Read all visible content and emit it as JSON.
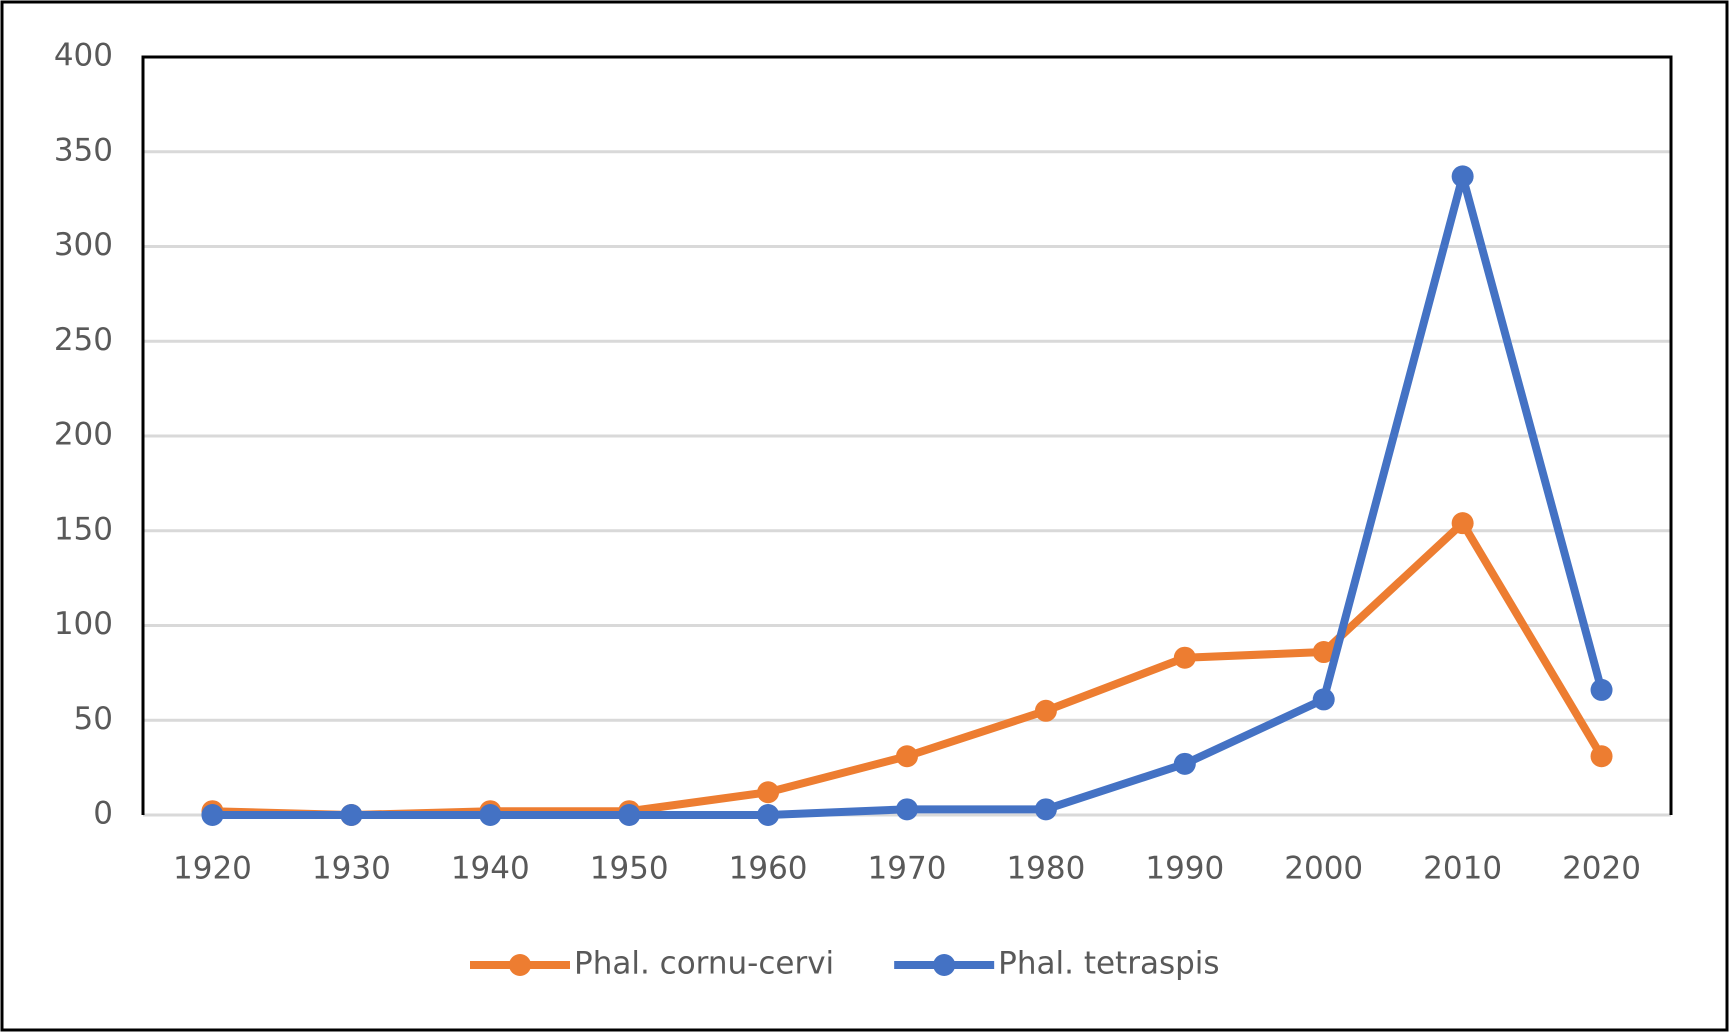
{
  "chart_data": {
    "type": "line",
    "categories": [
      "1920",
      "1930",
      "1940",
      "1950",
      "1960",
      "1970",
      "1980",
      "1990",
      "2000",
      "2010",
      "2020"
    ],
    "series": [
      {
        "name": "Phal. cornu-cervi",
        "color": "#ed7d31",
        "values": [
          2,
          0,
          2,
          2,
          12,
          31,
          55,
          83,
          86,
          154,
          31
        ]
      },
      {
        "name": "Phal. tetraspis",
        "color": "#4472c4",
        "values": [
          0,
          0,
          0,
          0,
          0,
          3,
          3,
          27,
          61,
          337,
          66
        ]
      }
    ],
    "ylim": [
      0,
      400
    ],
    "yticks": [
      0,
      50,
      100,
      150,
      200,
      250,
      300,
      350,
      400
    ],
    "grid": true,
    "legend": "bottom"
  }
}
